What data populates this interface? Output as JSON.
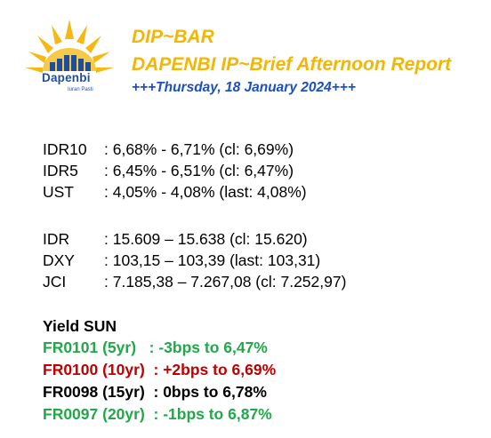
{
  "logo": {
    "name": "Dapenbi",
    "tagline": "Iuran Pasti"
  },
  "header": {
    "title": "DIP~BAR",
    "subtitle": "DAPENBI IP~Brief Afternoon Report",
    "date_line": "+++Thursday, 18 January 2024+++"
  },
  "colors": {
    "title": "#f2b705",
    "date": "#1d4fc4",
    "logo_blue": "#1f4e9a",
    "green": "#22a84a",
    "red": "#c00000",
    "black": "#000000"
  },
  "yields": [
    {
      "label": "IDR10",
      "value": ": 6,68% - 6,71% (cl: 6,69%)"
    },
    {
      "label": "IDR5",
      "value": ": 6,45% - 6,51% (cl: 6,47%)"
    },
    {
      "label": "UST",
      "value": ": 4,05% - 4,08% (last: 4,08%)"
    }
  ],
  "markets": [
    {
      "label": "IDR",
      "value": ": 15.609 – 15.638 (cl: 15.620)"
    },
    {
      "label": "DXY",
      "value": ": 103,15 – 103,39 (last: 103,31)"
    },
    {
      "label": "JCI",
      "value": ": 7.185,38 – 7.267,08 (cl: 7.252,97)"
    }
  ],
  "yield_sun": {
    "heading": "Yield SUN",
    "items": [
      {
        "text": "FR0101 (5yr)   : -3bps to 6,47%",
        "color": "#22a84a"
      },
      {
        "text": "FR0100 (10yr)  : +2bps to 6,69%",
        "color": "#c00000"
      },
      {
        "text": "FR0098 (15yr)  : 0bps to 6,78%",
        "color": "#000000"
      },
      {
        "text": "FR0097 (20yr)  : -1bps to 6,87%",
        "color": "#22a84a"
      }
    ]
  }
}
